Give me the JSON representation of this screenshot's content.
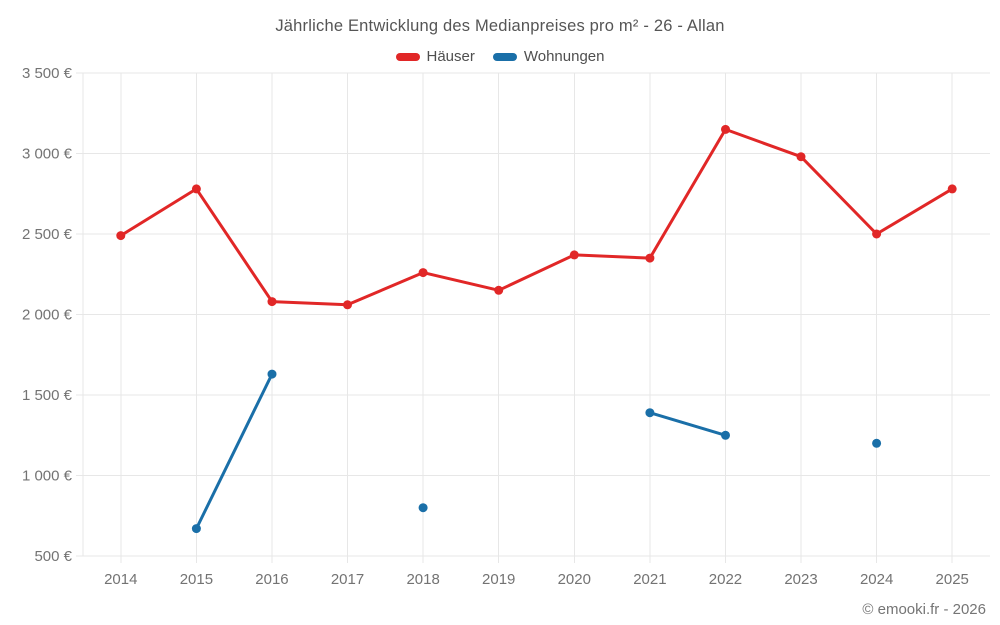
{
  "chart": {
    "title": "Jährliche Entwicklung des Medianpreises pro m² - 26 - Allan",
    "footer": "© emooki.fr - 2026",
    "background_color": "#ffffff",
    "grid_color": "#e7e7e7",
    "axis_label_color": "#737373",
    "title_color": "#555555"
  },
  "chart_data": {
    "type": "line",
    "title": "Jährliche Entwicklung des Medianpreises pro m² - 26 - Allan",
    "categories": [
      "2014",
      "2015",
      "2016",
      "2017",
      "2018",
      "2019",
      "2020",
      "2021",
      "2022",
      "2023",
      "2024",
      "2025"
    ],
    "series": [
      {
        "name": "Häuser",
        "color": "#e12727",
        "values": [
          2490,
          2780,
          2080,
          2060,
          2260,
          2150,
          2370,
          2350,
          3150,
          2980,
          2500,
          2780
        ]
      },
      {
        "name": "Wohnungen",
        "color": "#1a6fa8",
        "values": [
          null,
          670,
          1630,
          null,
          800,
          null,
          null,
          1390,
          1250,
          null,
          1200,
          null
        ]
      }
    ],
    "xlabel": "",
    "ylabel": "",
    "unit": "€",
    "ylim": [
      500,
      3500
    ],
    "grid": true,
    "legend_position": "top",
    "yticks": [
      {
        "value": 500,
        "label": "500 €"
      },
      {
        "value": 1000,
        "label": "1 000 €"
      },
      {
        "value": 1500,
        "label": "1 500 €"
      },
      {
        "value": 2000,
        "label": "2 000 €"
      },
      {
        "value": 2500,
        "label": "2 500 €"
      },
      {
        "value": 3000,
        "label": "3 000 €"
      },
      {
        "value": 3500,
        "label": "3 500 €"
      }
    ]
  }
}
